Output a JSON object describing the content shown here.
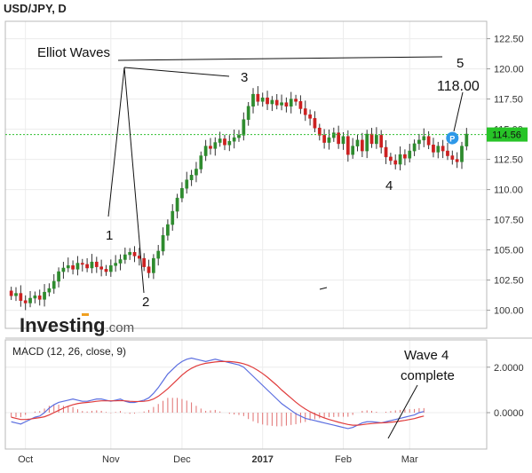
{
  "title": "USD/JPY, D",
  "branding": {
    "logo_main": "Investing",
    "logo_suffix": ".com"
  },
  "chart_data": [
    {
      "type": "candlestick",
      "title": "USD/JPY, D",
      "ylim": [
        98.5,
        123.5
      ],
      "y_ticks": [
        "122.50",
        "120.00",
        "117.50",
        "115.00",
        "112.50",
        "110.00",
        "107.50",
        "105.00",
        "102.50",
        "100.00"
      ],
      "x_ticks": [
        "Oct",
        "Nov",
        "Dec",
        "2017",
        "Feb",
        "Mar"
      ],
      "current_price": {
        "value": 114.56,
        "label": "114.56"
      },
      "grid": true,
      "annotations": [
        {
          "text": "Elliot Waves"
        },
        {
          "text": "1"
        },
        {
          "text": "2"
        },
        {
          "text": "3"
        },
        {
          "text": "4"
        },
        {
          "text": "5"
        },
        {
          "text": "118.00"
        }
      ],
      "candles_close": [
        101.2,
        101.4,
        100.8,
        100.6,
        101.0,
        101.2,
        100.9,
        101.5,
        101.8,
        102.4,
        103.2,
        103.5,
        103.7,
        103.4,
        103.9,
        103.8,
        103.5,
        104.0,
        103.6,
        103.4,
        103.2,
        103.7,
        103.9,
        104.2,
        104.6,
        104.8,
        104.5,
        104.3,
        103.6,
        103.1,
        104.3,
        104.9,
        106.2,
        107.1,
        108.2,
        109.3,
        110.1,
        110.8,
        111.2,
        111.7,
        112.8,
        113.6,
        113.4,
        113.9,
        114.2,
        113.7,
        114.0,
        114.3,
        114.5,
        115.8,
        116.9,
        117.9,
        117.3,
        117.6,
        117.1,
        117.4,
        117.0,
        117.2,
        116.9,
        117.5,
        117.3,
        116.7,
        116.2,
        115.9,
        115.1,
        114.5,
        113.9,
        114.3,
        114.7,
        113.8,
        114.4,
        112.9,
        113.6,
        114.1,
        113.2,
        114.6,
        113.8,
        114.5,
        113.5,
        112.7,
        112.4,
        112.1,
        112.9,
        112.6,
        113.2,
        113.8,
        114.1,
        114.4,
        113.7,
        113.1,
        113.6,
        113.2,
        112.8,
        112.5,
        112.3,
        113.6,
        114.6
      ],
      "macd": {
        "title": "MACD (12, 26, close, 9)",
        "ylim": [
          -1.6,
          3.2
        ],
        "y_ticks": [
          "2.0000",
          "0.0000"
        ],
        "annotations": [
          {
            "text": "Wave 4"
          },
          {
            "text": "complete"
          }
        ],
        "series": [
          {
            "color": "#5b6ee0",
            "values": [
              -0.4,
              -0.45,
              -0.5,
              -0.4,
              -0.3,
              -0.2,
              -0.15,
              0.0,
              0.2,
              0.35,
              0.45,
              0.5,
              0.55,
              0.6,
              0.55,
              0.5,
              0.5,
              0.55,
              0.6,
              0.6,
              0.55,
              0.5,
              0.55,
              0.6,
              0.5,
              0.45,
              0.45,
              0.5,
              0.55,
              0.65,
              0.85,
              1.1,
              1.4,
              1.7,
              1.9,
              2.1,
              2.25,
              2.35,
              2.4,
              2.35,
              2.3,
              2.25,
              2.3,
              2.35,
              2.3,
              2.25,
              2.2,
              2.15,
              2.1,
              2.0,
              1.8,
              1.6,
              1.4,
              1.2,
              1.0,
              0.8,
              0.6,
              0.4,
              0.25,
              0.1,
              -0.05,
              -0.15,
              -0.25,
              -0.3,
              -0.35,
              -0.4,
              -0.45,
              -0.5,
              -0.55,
              -0.6,
              -0.65,
              -0.7,
              -0.65,
              -0.55,
              -0.45,
              -0.4,
              -0.4,
              -0.42,
              -0.45,
              -0.4,
              -0.35,
              -0.3,
              -0.25,
              -0.2,
              -0.15,
              -0.1,
              0.0,
              0.05
            ]
          },
          {
            "color": "#e03c3c",
            "values": [
              -0.2,
              -0.25,
              -0.3,
              -0.3,
              -0.28,
              -0.25,
              -0.22,
              -0.18,
              -0.1,
              0.0,
              0.1,
              0.2,
              0.28,
              0.35,
              0.4,
              0.43,
              0.45,
              0.47,
              0.5,
              0.52,
              0.52,
              0.52,
              0.52,
              0.53,
              0.52,
              0.5,
              0.49,
              0.49,
              0.5,
              0.53,
              0.6,
              0.72,
              0.88,
              1.05,
              1.25,
              1.45,
              1.65,
              1.82,
              1.95,
              2.05,
              2.12,
              2.17,
              2.2,
              2.23,
              2.25,
              2.25,
              2.25,
              2.23,
              2.2,
              2.15,
              2.08,
              1.98,
              1.86,
              1.72,
              1.56,
              1.38,
              1.2,
              1.0,
              0.82,
              0.64,
              0.46,
              0.3,
              0.16,
              0.04,
              -0.06,
              -0.15,
              -0.23,
              -0.3,
              -0.36,
              -0.42,
              -0.47,
              -0.52,
              -0.55,
              -0.55,
              -0.53,
              -0.5,
              -0.48,
              -0.46,
              -0.45,
              -0.44,
              -0.42,
              -0.4,
              -0.37,
              -0.34,
              -0.3,
              -0.26,
              -0.2,
              -0.15
            ]
          }
        ],
        "histogram": [
          -0.2,
          -0.2,
          -0.2,
          -0.1,
          0.0,
          0.05,
          0.07,
          0.18,
          0.3,
          0.35,
          0.35,
          0.3,
          0.27,
          0.25,
          0.15,
          0.07,
          0.05,
          0.08,
          0.1,
          0.08,
          0.03,
          -0.02,
          0.03,
          0.07,
          -0.02,
          -0.05,
          -0.04,
          0.01,
          0.05,
          0.12,
          0.25,
          0.38,
          0.52,
          0.65,
          0.65,
          0.65,
          0.6,
          0.53,
          0.45,
          0.3,
          0.18,
          0.08,
          0.1,
          0.12,
          0.05,
          0.0,
          -0.05,
          -0.08,
          -0.1,
          -0.15,
          -0.28,
          -0.38,
          -0.46,
          -0.52,
          -0.56,
          -0.58,
          -0.6,
          -0.6,
          -0.57,
          -0.54,
          -0.51,
          -0.45,
          -0.41,
          -0.34,
          -0.29,
          -0.25,
          -0.22,
          -0.2,
          -0.19,
          -0.18,
          -0.18,
          -0.18,
          -0.1,
          0.0,
          0.08,
          0.1,
          0.08,
          0.04,
          0.0,
          0.04,
          0.07,
          0.1,
          0.12,
          0.14,
          0.15,
          0.16,
          0.2,
          0.2
        ]
      }
    }
  ]
}
